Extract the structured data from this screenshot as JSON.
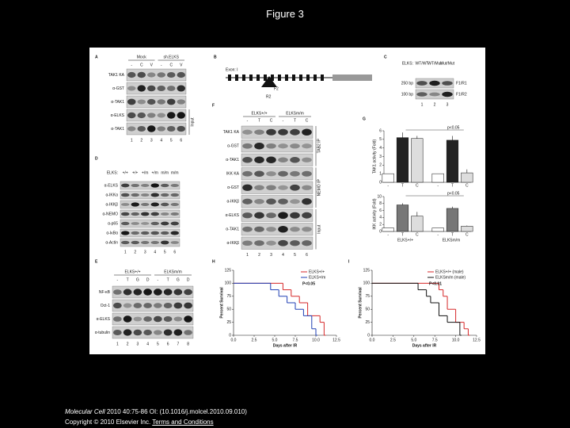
{
  "title": "Figure 3",
  "panels": {
    "A": {
      "letter": "A",
      "groups": [
        "Mock",
        "sh.ELKS"
      ],
      "lanes": [
        "-",
        "C",
        "V",
        "-",
        "C",
        "V"
      ],
      "rows": [
        "TAK1 KA",
        "α-GST",
        "α-TAK1",
        "α-ELKS",
        "α-TAK1"
      ],
      "sides": [
        "Input"
      ],
      "numbers": [
        1,
        2,
        3,
        4,
        5,
        6
      ]
    },
    "B": {
      "letter": "B",
      "labels": [
        "Exon: I",
        "F2",
        "R2"
      ]
    },
    "C": {
      "letter": "C",
      "lead": "ELKS:",
      "lanes": [
        "WT/WT",
        "WT/Mut",
        "Mut/Mut"
      ],
      "rows": [
        "250 bp",
        "100 bp"
      ],
      "right": [
        "F1/R1",
        "F1/R2"
      ],
      "numbers": [
        1,
        2,
        3
      ]
    },
    "D": {
      "letter": "D",
      "lead": "ELKS:",
      "lanes": [
        "+/+",
        "+/+",
        "+/m",
        "+/m",
        "m/m",
        "m/m"
      ],
      "rows": [
        "α-ELKS",
        "α-IKKα",
        "α-IKKβ",
        "α-NEMO",
        "α-p65",
        "α-IκBα",
        "α-Actin"
      ],
      "numbers": [
        1,
        2,
        3,
        4,
        5,
        6
      ]
    },
    "E": {
      "letter": "E",
      "groups": [
        "ELKS+/+",
        "ELKSm/m"
      ],
      "lanes": [
        "-",
        "T",
        "G",
        "D",
        "-",
        "T",
        "G",
        "D"
      ],
      "rows": [
        "NF-κB",
        "Oct-1",
        "α-ELKS",
        "α-tubulin"
      ],
      "numbers": [
        1,
        2,
        3,
        4,
        5,
        6,
        7,
        8
      ]
    },
    "F": {
      "letter": "F",
      "groups": [
        "ELKS+/+",
        "ELKSm/m"
      ],
      "lanes": [
        "-",
        "T",
        "C",
        "-",
        "T",
        "C"
      ],
      "rows": [
        "TAK1 KA",
        "α-GST",
        "α-TAK1",
        "IKK KA",
        "α-GST",
        "α-IKKβ",
        "α-ELKS",
        "α-TAK1",
        "α-IKKβ"
      ],
      "sides": [
        "TAB2 IP",
        "NEMO IP",
        "Input"
      ],
      "numbers": [
        1,
        2,
        3,
        4,
        5,
        6
      ]
    },
    "G": {
      "letter": "G",
      "groups": [
        "ELKS+/+",
        "ELKSm/m"
      ],
      "charts": [
        {
          "ylabel": "TAK1 activity (Fold)",
          "note": "p<0.05",
          "categories": [
            "-",
            "T",
            "C",
            "-",
            "T",
            "C"
          ],
          "values": [
            1,
            5.2,
            5.1,
            1,
            4.9,
            1.1
          ],
          "errors": [
            0,
            0.6,
            0.3,
            0,
            0.5,
            0.4
          ],
          "colors": [
            "#ffffff",
            "#222222",
            "#dddddd",
            "#ffffff",
            "#222222",
            "#dddddd"
          ],
          "ylim": [
            0,
            6
          ],
          "yticks": [
            0,
            1,
            2,
            3,
            4,
            5,
            6
          ]
        },
        {
          "ylabel": "IKK activity (Fold)",
          "note": "p<0.05",
          "categories": [
            "-",
            "T",
            "C",
            "-",
            "T",
            "C"
          ],
          "values": [
            1,
            7.6,
            4.4,
            1,
            6.6,
            1.5
          ],
          "errors": [
            0,
            0.5,
            1.2,
            0,
            0.5,
            0.2
          ],
          "colors": [
            "#ffffff",
            "#777777",
            "#dddddd",
            "#ffffff",
            "#777777",
            "#dddddd"
          ],
          "ylim": [
            0,
            10
          ],
          "yticks": [
            0,
            2,
            4,
            6,
            8,
            10
          ]
        }
      ]
    },
    "H": {
      "letter": "H",
      "xlabel": "Days after IR",
      "ylabel": "Percent Survival",
      "note": "P<0.05",
      "xlim": [
        0,
        12.5
      ],
      "ylim": [
        0,
        125
      ],
      "xticks": [
        {
          "value": 0,
          "label": "0.0"
        },
        2.5,
        {
          "value": 5,
          "label": "5.0"
        },
        7.5,
        {
          "value": 10,
          "label": "10.0"
        },
        12.5
      ],
      "yticks": [
        0,
        25,
        50,
        75,
        100,
        125
      ],
      "series": [
        {
          "name": "ELKS+/+",
          "color": "#d62728",
          "x": [
            0,
            6,
            7,
            8,
            9,
            10.5,
            11
          ],
          "values": [
            100,
            87.5,
            75,
            62.5,
            37.5,
            25,
            0
          ]
        },
        {
          "name": "ELKS+/m",
          "color": "#1f3fb4",
          "x": [
            0,
            4.5,
            5.5,
            6.5,
            7.5,
            8.5,
            9.5,
            10
          ],
          "values": [
            100,
            87.5,
            75,
            62.5,
            50,
            37.5,
            12.5,
            0
          ]
        }
      ]
    },
    "I": {
      "letter": "I",
      "xlabel": "Days after IR",
      "ylabel": "Percent Survival",
      "note": "P<0.01",
      "xlim": [
        0,
        12.5
      ],
      "ylim": [
        0,
        125
      ],
      "xticks": [
        {
          "value": 0,
          "label": "0.0"
        },
        2.5,
        {
          "value": 5,
          "label": "5.0"
        },
        7.5,
        {
          "value": 10,
          "label": "10.0"
        },
        12.5
      ],
      "yticks": [
        0,
        25,
        50,
        75,
        100,
        125
      ],
      "series": [
        {
          "name": "ELKS+/+ (male)",
          "color": "#d62728",
          "x": [
            0,
            8,
            8.5,
            9,
            10,
            11,
            11.5
          ],
          "values": [
            100,
            87.5,
            75,
            50,
            25,
            12.5,
            0
          ]
        },
        {
          "name": "ELKSm/m (male)",
          "color": "#111111",
          "x": [
            0,
            5.5,
            6.5,
            7,
            8,
            9,
            10.5
          ],
          "values": [
            100,
            87.5,
            75,
            62.5,
            37.5,
            25,
            0
          ]
        }
      ]
    }
  },
  "footer": {
    "journal": "Molecular Cell",
    "citation": " 2010 40:75-86 OI: (10.1016/j.molcel.2010.09.010)",
    "copyright": "Copyright © 2010 Elsevier Inc.",
    "link": "Terms and Conditions"
  }
}
